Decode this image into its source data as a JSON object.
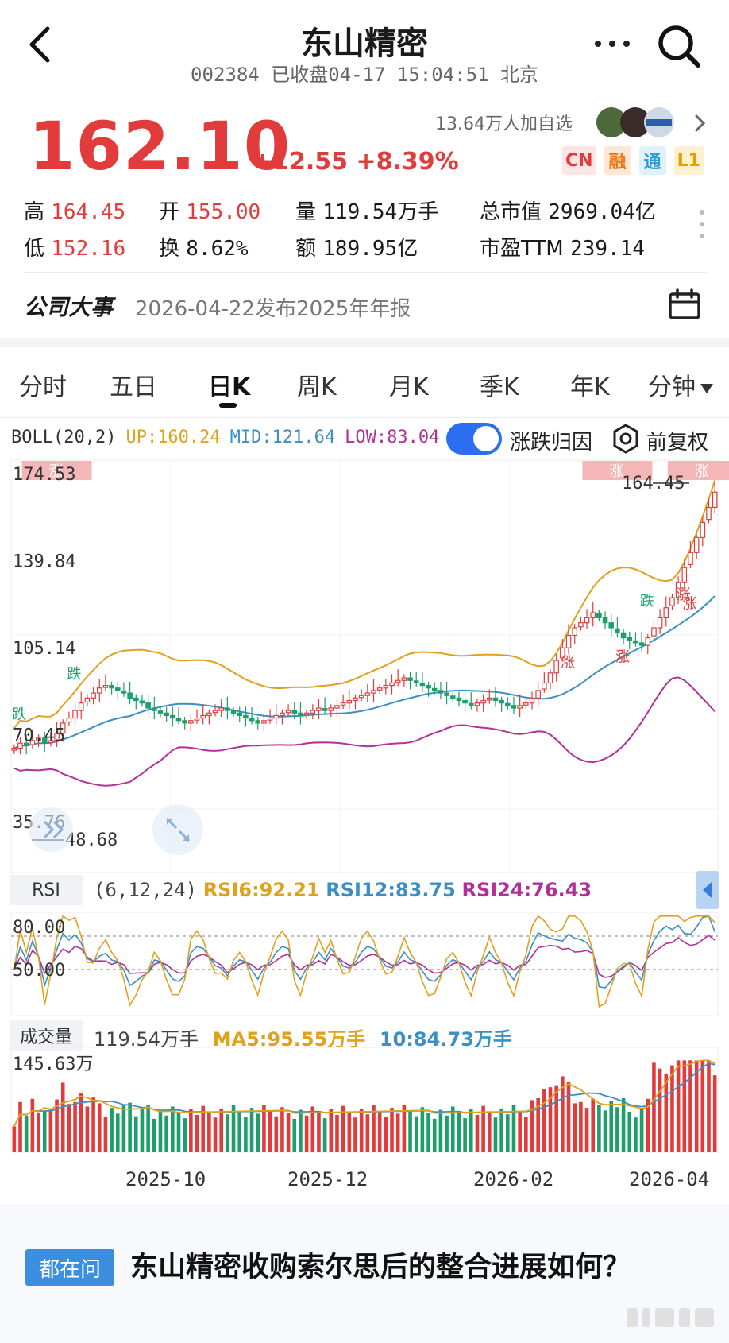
{
  "header": {
    "title": "东山精密",
    "code": "002384",
    "status": "已收盘04-17 15:04:51 北京"
  },
  "quote": {
    "price": "162.10",
    "change": "+12.55",
    "change_pct": "+8.39%",
    "followers": "13.64万人加自选",
    "badges": [
      "CN",
      "融",
      "通",
      "L1"
    ],
    "stats": [
      {
        "label": "高",
        "value": "164.45"
      },
      {
        "label": "开",
        "value": "155.00"
      },
      {
        "label": "量",
        "value": "119.54万手"
      },
      {
        "label": "总市值",
        "value": "2969.04亿"
      },
      {
        "label": "低",
        "value": "152.16"
      },
      {
        "label": "换",
        "value": "8.62%"
      },
      {
        "label": "额",
        "value": "189.95亿"
      },
      {
        "label": "市盈TTM",
        "value": "239.14"
      }
    ]
  },
  "event": {
    "label": "公司大事",
    "text": "2026-04-22发布2025年年报"
  },
  "tabs": [
    "分时",
    "五日",
    "日K",
    "周K",
    "月K",
    "季K",
    "年K",
    "分钟"
  ],
  "active_tab": "日K",
  "indicator": {
    "boll_name": "BOLL(20,2)",
    "up": "UP:160.24",
    "mid": "MID:121.64",
    "low": "LOW:83.04",
    "toggle_label": "涨跌归因",
    "adjust_label": "前复权",
    "colors": {
      "up": "#e0a11d",
      "mid": "#3c8fc4",
      "low": "#b3309b",
      "rise": "#e23b3b",
      "fall": "#1e9e6a"
    }
  },
  "kline": {
    "y_ticks": [
      "174.53",
      "139.84",
      "105.14",
      "70.45",
      "35.76"
    ],
    "high_mark": "164.45",
    "low_mark": "48.68",
    "tags": [
      "涨",
      "涨",
      "涨",
      "涨",
      "涨",
      "涨",
      "涨",
      "跌",
      "跌",
      "跌"
    ]
  },
  "rsi": {
    "chip": "RSI",
    "params": "(6,12,24)",
    "rsi6": "RSI6:92.21",
    "rsi12": "RSI12:83.75",
    "rsi24": "RSI24:76.43",
    "ticks": [
      "80.00",
      "50.00"
    ]
  },
  "volume": {
    "chip": "成交量",
    "current": "119.54万手",
    "ma5": "MA5:95.55万手",
    "ma10": "10:84.73万手",
    "max_tick": "145.63万"
  },
  "x_dates": [
    "2025-10",
    "2025-12",
    "2026-02",
    "2026-04"
  ],
  "question": {
    "chip": "都在问",
    "text": "东山精密收购索尔思后的整合进展如何？"
  },
  "chart_data": {
    "type": "candlestick",
    "title": "",
    "y_axis_ticks": [
      174.53,
      139.84,
      105.14,
      70.45,
      35.76
    ],
    "ylim": [
      35.76,
      174.53
    ],
    "x_tick_labels": [
      "2025-10",
      "2025-12",
      "2026-02",
      "2026-04"
    ],
    "close_path": [
      60,
      62,
      61,
      63,
      64,
      62,
      63,
      66,
      70,
      72,
      75,
      78,
      80,
      82,
      84,
      85,
      84,
      83,
      82,
      80,
      79,
      78,
      76,
      75,
      74,
      73,
      72,
      71,
      70,
      71,
      72,
      73,
      74,
      75,
      76,
      75,
      74,
      73,
      72,
      71,
      70,
      71,
      72,
      73,
      74,
      75,
      74,
      73,
      74,
      75,
      76,
      75,
      76,
      77,
      78,
      79,
      80,
      81,
      82,
      83,
      84,
      85,
      86,
      87,
      88,
      87,
      86,
      85,
      84,
      83,
      82,
      81,
      80,
      79,
      78,
      77,
      78,
      79,
      80,
      79,
      78,
      77,
      76,
      77,
      78,
      80,
      83,
      86,
      90,
      95,
      100,
      105,
      108,
      110,
      112,
      114,
      112,
      110,
      108,
      106,
      104,
      103,
      102,
      101,
      104,
      108,
      112,
      116,
      120,
      126,
      132,
      138,
      144,
      150,
      156,
      162.1
    ],
    "boll_last": {
      "up": 160.24,
      "mid": 121.64,
      "low": 83.04
    },
    "high_marker": 164.45,
    "low_marker": 48.68,
    "rsi_last": {
      "rsi6": 92.21,
      "rsi12": 83.75,
      "rsi24": 76.43
    },
    "rsi_ticks": [
      80,
      50
    ],
    "volume_last": 119.54,
    "volume_ma5": 95.55,
    "volume_ma10": 84.73,
    "volume_max_tick": 145.63
  }
}
